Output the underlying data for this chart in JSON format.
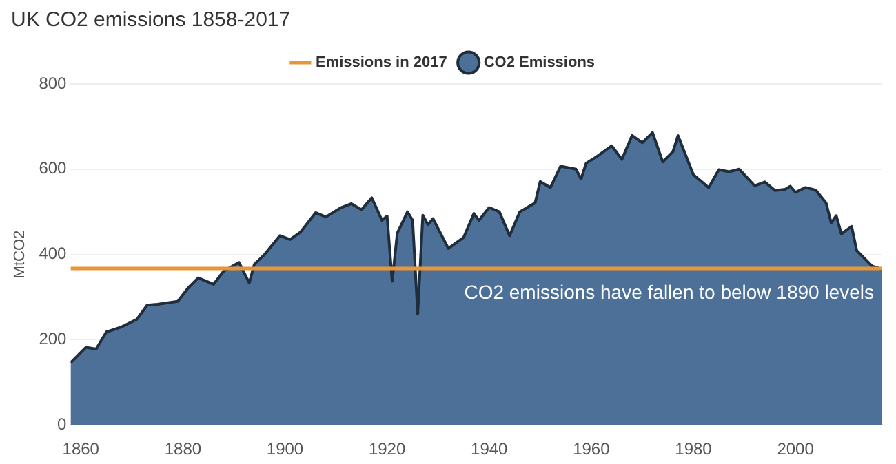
{
  "chart_data": {
    "type": "area",
    "title": "UK CO2 emissions 1858-2017",
    "ylabel": "MtCO2",
    "annotations": [
      "CO2 emissions have fallen to below 1890 levels"
    ],
    "series": [
      {
        "name": "CO2 Emissions",
        "type": "area",
        "color": "#4d7098",
        "x": [
          1858,
          1861,
          1863,
          1865,
          1868,
          1871,
          1873,
          1875,
          1879,
          1881,
          1883,
          1886,
          1888,
          1891,
          1893,
          1894,
          1896,
          1899,
          1901,
          1903,
          1906,
          1908,
          1911,
          1913,
          1915,
          1917,
          1919,
          1920,
          1921,
          1922,
          1924,
          1925,
          1926,
          1927,
          1928,
          1929,
          1932,
          1935,
          1937,
          1938,
          1940,
          1942,
          1944,
          1946,
          1949,
          1950,
          1952,
          1954,
          1957,
          1958,
          1959,
          1961,
          1964,
          1966,
          1968,
          1970,
          1972,
          1974,
          1976,
          1977,
          1980,
          1983,
          1985,
          1987,
          1989,
          1992,
          1994,
          1996,
          1998,
          1999,
          2000,
          2002,
          2004,
          2006,
          2007,
          2008,
          2009,
          2011,
          2012,
          2015,
          2017
        ],
        "values": [
          146,
          182,
          178,
          218,
          230,
          248,
          281,
          283,
          290,
          321,
          345,
          330,
          361,
          381,
          333,
          377,
          400,
          444,
          435,
          452,
          498,
          488,
          510,
          519,
          505,
          533,
          480,
          490,
          337,
          450,
          500,
          480,
          260,
          492,
          470,
          484,
          414,
          440,
          496,
          480,
          510,
          500,
          444,
          500,
          521,
          571,
          557,
          607,
          600,
          577,
          614,
          629,
          655,
          623,
          679,
          662,
          686,
          617,
          641,
          679,
          587,
          557,
          599,
          594,
          600,
          561,
          570,
          550,
          553,
          560,
          546,
          557,
          551,
          521,
          474,
          491,
          448,
          466,
          409,
          373,
          365
        ]
      },
      {
        "name": "Emissions in 2017",
        "type": "line",
        "color": "#e8953a",
        "x": [
          1858,
          2017
        ],
        "values": [
          367,
          367
        ]
      }
    ],
    "xlim": [
      1858,
      2017
    ],
    "xticks": [
      1860,
      1880,
      1900,
      1920,
      1940,
      1960,
      1980,
      2000
    ],
    "ylim": [
      0,
      800
    ],
    "yticks": [
      0,
      200,
      400,
      600,
      800
    ],
    "grid": "y",
    "legend": "top",
    "marker": "none"
  }
}
